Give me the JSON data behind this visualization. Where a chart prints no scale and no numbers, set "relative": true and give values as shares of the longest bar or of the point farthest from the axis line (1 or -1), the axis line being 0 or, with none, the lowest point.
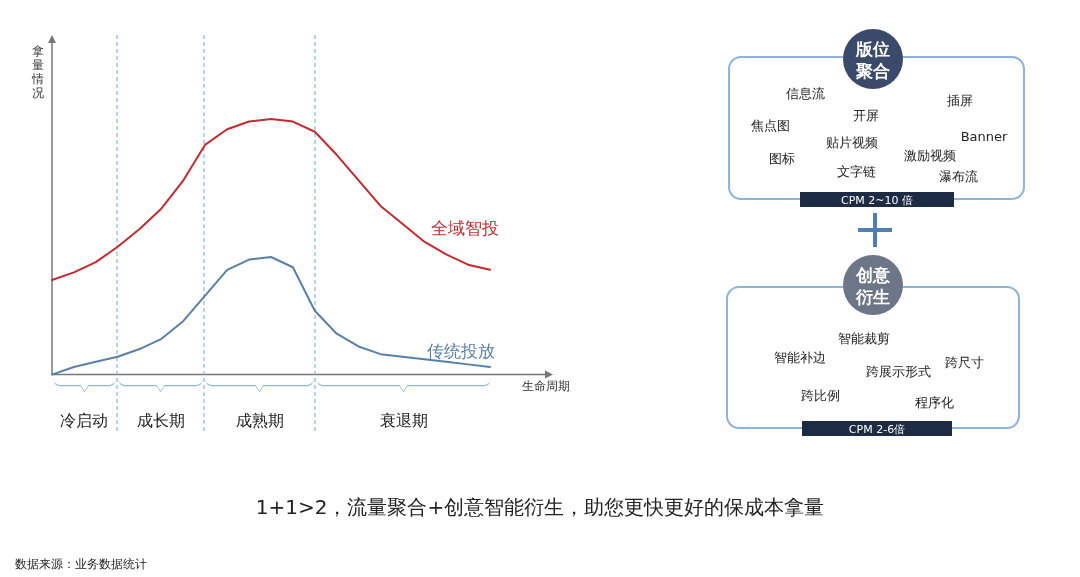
{
  "chart_data": [
    {
      "type": "line",
      "relative": true,
      "xlabel": "生命周期",
      "ylabel": "拿量情况",
      "categories": [
        null,
        null,
        null,
        null,
        null,
        null,
        null,
        null,
        null,
        null,
        null,
        null,
        null,
        null,
        null,
        null,
        null,
        null,
        null,
        null,
        null
      ],
      "series": [
        {
          "name": "全域智投",
          "color": "#c42a30",
          "values": [
            0.37,
            0.4,
            0.44,
            0.5,
            0.57,
            0.65,
            0.76,
            0.9,
            0.96,
            0.99,
            1.0,
            0.99,
            0.95,
            0.86,
            0.76,
            0.66,
            0.59,
            0.52,
            0.47,
            0.43,
            0.41
          ]
        },
        {
          "name": "传统投放",
          "color": "#5b80a8",
          "values": [
            0.0,
            0.03,
            0.05,
            0.07,
            0.1,
            0.14,
            0.21,
            0.31,
            0.41,
            0.45,
            0.46,
            0.42,
            0.25,
            0.16,
            0.11,
            0.08,
            0.07,
            0.06,
            0.05,
            0.04,
            0.03
          ]
        }
      ],
      "grid": "x",
      "annotations": [
        "冷启动",
        "成长期",
        "成熟期",
        "衰退期",
        "1+1>2，流量聚合+创意智能衍生，助您更快更好的保成本拿量",
        "数据来源：业务数据统计"
      ]
    },
    {
      "type": "other",
      "annotations": [
        "版位",
        "聚合",
        "信息流",
        "开屏",
        "插屏",
        "焦点图",
        "Banner",
        "贴片视频",
        "激励视频",
        "图标",
        "文字链",
        "瀑布流",
        "CPM 2~10 倍",
        "创意",
        "衍生",
        "智能裁剪",
        "智能补边",
        "跨尺寸",
        "跨展示形式",
        "跨比例",
        "程序化",
        "CPM 2-6倍"
      ]
    }
  ]
}
